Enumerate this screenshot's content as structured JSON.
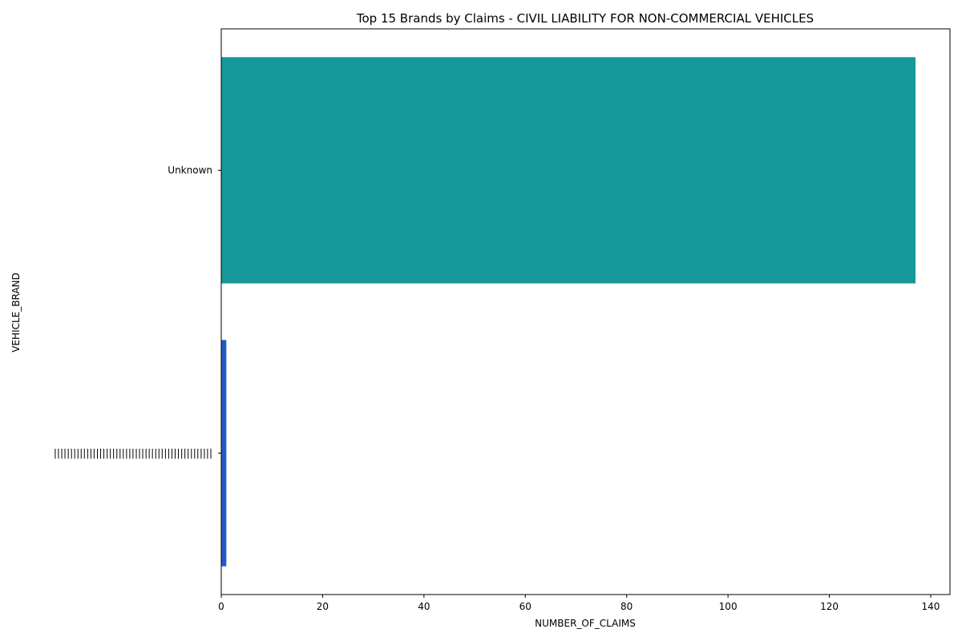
{
  "chart_data": {
    "type": "bar",
    "orientation": "horizontal",
    "title": "Top 15 Brands by Claims - CIVIL LIABILITY FOR NON-COMMERCIAL VEHICLES",
    "xlabel": "NUMBER_OF_CLAIMS",
    "ylabel": "VEHICLE_BRAND",
    "categories": [
      "Unknown",
      "|||||||||||||||||||||||||||||||||||||||||||||||||"
    ],
    "values": [
      137,
      1
    ],
    "colors": [
      "#17989a",
      "#1f5bc9"
    ],
    "xlim": [
      0,
      143.8
    ],
    "xticks": [
      0,
      20,
      40,
      60,
      80,
      100,
      120,
      140
    ],
    "grid": false,
    "legend": "none"
  }
}
